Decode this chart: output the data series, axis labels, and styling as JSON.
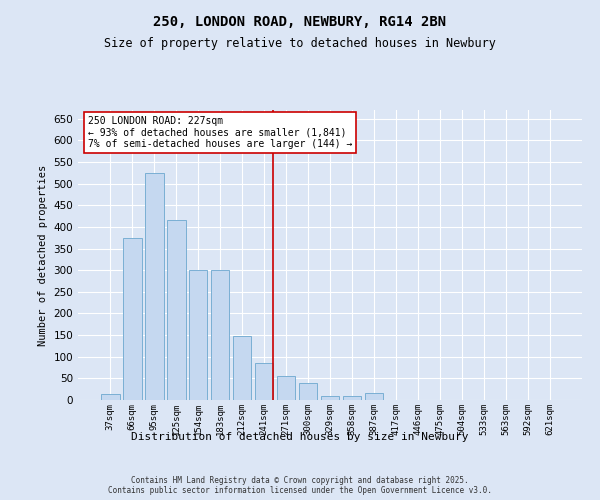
{
  "title_line1": "250, LONDON ROAD, NEWBURY, RG14 2BN",
  "title_line2": "Size of property relative to detached houses in Newbury",
  "xlabel": "Distribution of detached houses by size in Newbury",
  "ylabel": "Number of detached properties",
  "categories": [
    "37sqm",
    "66sqm",
    "95sqm",
    "125sqm",
    "154sqm",
    "183sqm",
    "212sqm",
    "241sqm",
    "271sqm",
    "300sqm",
    "329sqm",
    "358sqm",
    "387sqm",
    "417sqm",
    "446sqm",
    "475sqm",
    "504sqm",
    "533sqm",
    "563sqm",
    "592sqm",
    "621sqm"
  ],
  "values": [
    15,
    375,
    525,
    415,
    300,
    300,
    148,
    85,
    55,
    40,
    10,
    10,
    17,
    0,
    0,
    0,
    0,
    0,
    1,
    0,
    1
  ],
  "bar_color": "#c5d8f0",
  "bar_edge_color": "#7aafd4",
  "background_color": "#dce6f5",
  "grid_color": "#ffffff",
  "vline_color": "#cc0000",
  "vline_x": 7.42,
  "annotation_text": "250 LONDON ROAD: 227sqm\n← 93% of detached houses are smaller (1,841)\n7% of semi-detached houses are larger (144) →",
  "annotation_box_color": "#ffffff",
  "annotation_box_edge_color": "#cc0000",
  "ylim": [
    0,
    670
  ],
  "yticks": [
    0,
    50,
    100,
    150,
    200,
    250,
    300,
    350,
    400,
    450,
    500,
    550,
    600,
    650
  ],
  "footer_line1": "Contains HM Land Registry data © Crown copyright and database right 2025.",
  "footer_line2": "Contains public sector information licensed under the Open Government Licence v3.0."
}
